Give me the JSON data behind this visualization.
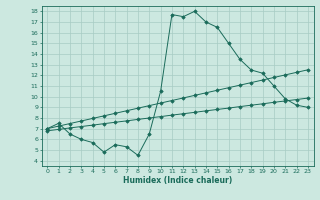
{
  "xlabel": "Humidex (Indice chaleur)",
  "xlim": [
    -0.5,
    23.5
  ],
  "ylim": [
    3.5,
    18.5
  ],
  "xticks": [
    0,
    1,
    2,
    3,
    4,
    5,
    6,
    7,
    8,
    9,
    10,
    11,
    12,
    13,
    14,
    15,
    16,
    17,
    18,
    19,
    20,
    21,
    22,
    23
  ],
  "yticks": [
    4,
    5,
    6,
    7,
    8,
    9,
    10,
    11,
    12,
    13,
    14,
    15,
    16,
    17,
    18
  ],
  "bg_color": "#cce8e0",
  "line_color": "#1a6b5a",
  "grid_color": "#a8ccC4",
  "line1_x": [
    0,
    1,
    2,
    3,
    4,
    5,
    6,
    7,
    8,
    9,
    10,
    11,
    12,
    13,
    14,
    15,
    16,
    17,
    18,
    19,
    20,
    21,
    22,
    23
  ],
  "line1_y": [
    7.0,
    7.5,
    6.5,
    6.0,
    5.7,
    4.8,
    5.5,
    5.3,
    4.5,
    6.5,
    10.5,
    17.7,
    17.5,
    18.0,
    17.0,
    16.5,
    15.0,
    13.5,
    12.5,
    12.2,
    11.0,
    9.8,
    9.2,
    9.0
  ],
  "line2_x": [
    0,
    1,
    2,
    3,
    4,
    5,
    6,
    7,
    8,
    9,
    10,
    11,
    12,
    13,
    14,
    15,
    16,
    17,
    18,
    19,
    20,
    21,
    22,
    23
  ],
  "line2_y": [
    7.0,
    7.24,
    7.48,
    7.72,
    7.96,
    8.2,
    8.44,
    8.68,
    8.92,
    9.16,
    9.4,
    9.64,
    9.88,
    10.12,
    10.36,
    10.6,
    10.84,
    11.08,
    11.32,
    11.56,
    11.8,
    12.04,
    12.28,
    12.52
  ],
  "line3_x": [
    0,
    1,
    2,
    3,
    4,
    5,
    6,
    7,
    8,
    9,
    10,
    11,
    12,
    13,
    14,
    15,
    16,
    17,
    18,
    19,
    20,
    21,
    22,
    23
  ],
  "line3_y": [
    6.8,
    6.93,
    7.07,
    7.2,
    7.33,
    7.47,
    7.6,
    7.73,
    7.87,
    8.0,
    8.13,
    8.27,
    8.4,
    8.53,
    8.67,
    8.8,
    8.93,
    9.07,
    9.2,
    9.33,
    9.47,
    9.6,
    9.73,
    9.87
  ]
}
